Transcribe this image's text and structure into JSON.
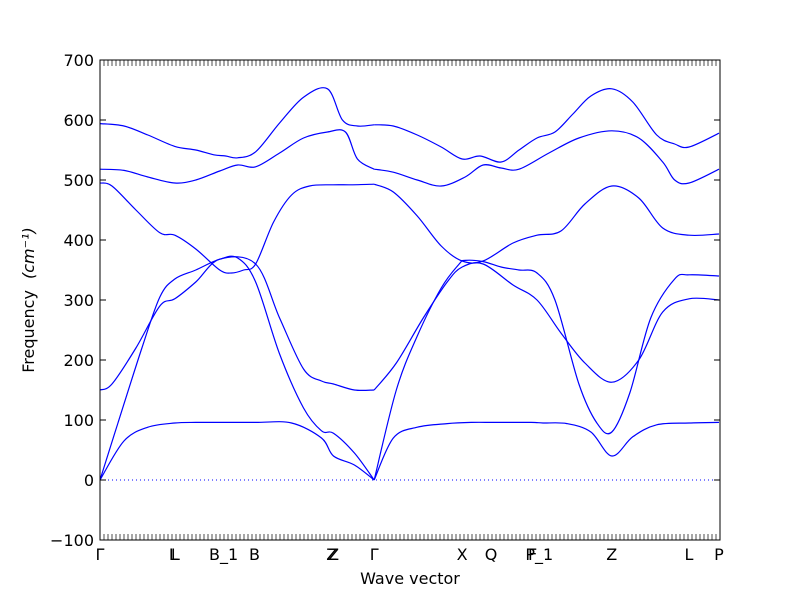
{
  "chart_data": {
    "type": "line",
    "title": "",
    "xlabel": "Wave vector",
    "ylabel": "Frequency",
    "ylabel_unit": "(cm⁻¹)",
    "ylim": [
      -100,
      700
    ],
    "yticks": [
      -100,
      0,
      100,
      200,
      300,
      400,
      500,
      600,
      700
    ],
    "xlim": [
      0,
      10.357
    ],
    "grid": false,
    "legend": "none",
    "line_color": "#0000ff",
    "zero_line_color": "#0000ff",
    "high_symmetry_points": [
      {
        "label": "Γ",
        "x": 0.0
      },
      {
        "label": "L",
        "x": 1.226
      },
      {
        "label": "L",
        "x": 1.258
      },
      {
        "label": "B_1",
        "x": 2.065
      },
      {
        "label": "B",
        "x": 2.581
      },
      {
        "label": "Z",
        "x": 3.871
      },
      {
        "label": "Z",
        "x": 3.903
      },
      {
        "label": "Γ",
        "x": 4.581
      },
      {
        "label": "X",
        "x": 6.048
      },
      {
        "label": "Q",
        "x": 6.532
      },
      {
        "label": "F",
        "x": 7.226
      },
      {
        "label": "P_1",
        "x": 7.339
      },
      {
        "label": "Z",
        "x": 8.548
      },
      {
        "label": "L",
        "x": 9.839
      },
      {
        "label": "P",
        "x": 10.339
      }
    ],
    "series": [
      {
        "x": [
          0.0,
          0.4,
          0.8,
          1.25,
          1.6,
          2.0,
          2.6,
          3.2,
          3.7,
          3.9,
          4.25,
          4.58
        ],
        "values": [
          0,
          65,
          88,
          95,
          96,
          96,
          96,
          95,
          70,
          40,
          25,
          0
        ]
      },
      {
        "x": [
          4.58,
          4.9,
          5.3,
          5.8,
          6.2,
          6.6,
          7.2,
          7.4,
          7.8,
          8.2,
          8.55,
          8.9,
          9.3,
          9.84,
          10.34
        ],
        "values": [
          0,
          70,
          88,
          94,
          96,
          96,
          96,
          95,
          94,
          80,
          40,
          72,
          92,
          95,
          96
        ]
      },
      {
        "x": [
          0.0,
          0.3,
          0.7,
          1.0,
          1.25,
          1.6,
          2.0,
          2.3,
          2.6,
          3.0,
          3.4,
          3.7,
          3.9,
          4.25,
          4.58
        ],
        "values": [
          0,
          95,
          220,
          305,
          335,
          350,
          368,
          370,
          330,
          210,
          120,
          82,
          78,
          45,
          0
        ]
      },
      {
        "x": [
          4.58,
          4.95,
          5.3,
          5.7,
          6.0,
          6.1,
          6.4,
          6.7,
          7.0,
          7.3,
          7.6,
          8.0,
          8.3,
          8.55,
          8.85,
          9.2,
          9.6,
          9.84,
          10.34
        ],
        "values": [
          0,
          150,
          240,
          320,
          360,
          366,
          364,
          355,
          350,
          345,
          300,
          160,
          95,
          80,
          145,
          270,
          335,
          342,
          340
        ]
      },
      {
        "x": [
          0.0,
          0.2,
          0.6,
          1.0,
          1.25,
          1.6,
          2.0,
          2.6,
          3.0,
          3.4,
          3.7,
          3.9,
          4.25,
          4.58
        ],
        "values": [
          150,
          160,
          220,
          290,
          302,
          330,
          368,
          360,
          270,
          185,
          165,
          160,
          150,
          150
        ]
      },
      {
        "x": [
          4.58,
          4.95,
          5.4,
          5.8,
          6.05,
          6.4,
          6.9,
          7.3,
          7.7,
          8.1,
          8.55,
          9.0,
          9.4,
          9.84,
          10.34
        ],
        "values": [
          150,
          195,
          270,
          330,
          355,
          360,
          325,
          300,
          245,
          195,
          163,
          200,
          280,
          302,
          300
        ]
      },
      {
        "x": [
          0.0,
          0.2,
          0.6,
          1.0,
          1.25,
          1.6,
          2.0,
          2.2,
          2.4,
          2.6,
          2.9,
          3.2,
          3.5,
          3.9,
          4.2,
          4.58
        ],
        "values": [
          495,
          490,
          450,
          412,
          408,
          385,
          350,
          345,
          350,
          360,
          430,
          475,
          490,
          492,
          492,
          493
        ]
      },
      {
        "x": [
          4.58,
          4.9,
          5.3,
          5.7,
          6.05,
          6.4,
          6.9,
          7.3,
          7.7,
          8.1,
          8.55,
          9.0,
          9.4,
          9.84,
          10.34
        ],
        "values": [
          493,
          480,
          440,
          390,
          365,
          365,
          395,
          408,
          415,
          460,
          490,
          470,
          420,
          408,
          410
        ]
      },
      {
        "x": [
          0.0,
          0.4,
          0.8,
          1.25,
          1.6,
          2.0,
          2.3,
          2.6,
          3.0,
          3.4,
          3.8,
          4.1,
          4.3,
          4.58
        ],
        "values": [
          518,
          516,
          505,
          495,
          500,
          515,
          525,
          522,
          545,
          570,
          580,
          580,
          535,
          518
        ]
      },
      {
        "x": [
          4.58,
          4.9,
          5.3,
          5.7,
          6.1,
          6.4,
          6.7,
          7.0,
          7.5,
          8.0,
          8.55,
          9.0,
          9.4,
          9.6,
          9.84,
          10.34
        ],
        "values": [
          518,
          513,
          500,
          490,
          505,
          525,
          520,
          518,
          545,
          570,
          582,
          570,
          530,
          500,
          495,
          518
        ]
      },
      {
        "x": [
          0.0,
          0.4,
          0.8,
          1.25,
          1.6,
          1.9,
          2.1,
          2.3,
          2.6,
          3.0,
          3.4,
          3.8,
          4.05,
          4.3,
          4.58
        ],
        "values": [
          594,
          590,
          575,
          556,
          550,
          542,
          540,
          537,
          547,
          595,
          638,
          652,
          600,
          590,
          592
        ]
      },
      {
        "x": [
          4.58,
          4.9,
          5.3,
          5.7,
          6.05,
          6.35,
          6.7,
          7.0,
          7.3,
          7.6,
          7.9,
          8.2,
          8.55,
          8.9,
          9.3,
          9.6,
          9.84,
          10.34
        ],
        "values": [
          592,
          590,
          575,
          555,
          535,
          540,
          530,
          550,
          570,
          580,
          610,
          640,
          652,
          630,
          575,
          560,
          555,
          578
        ]
      }
    ]
  }
}
